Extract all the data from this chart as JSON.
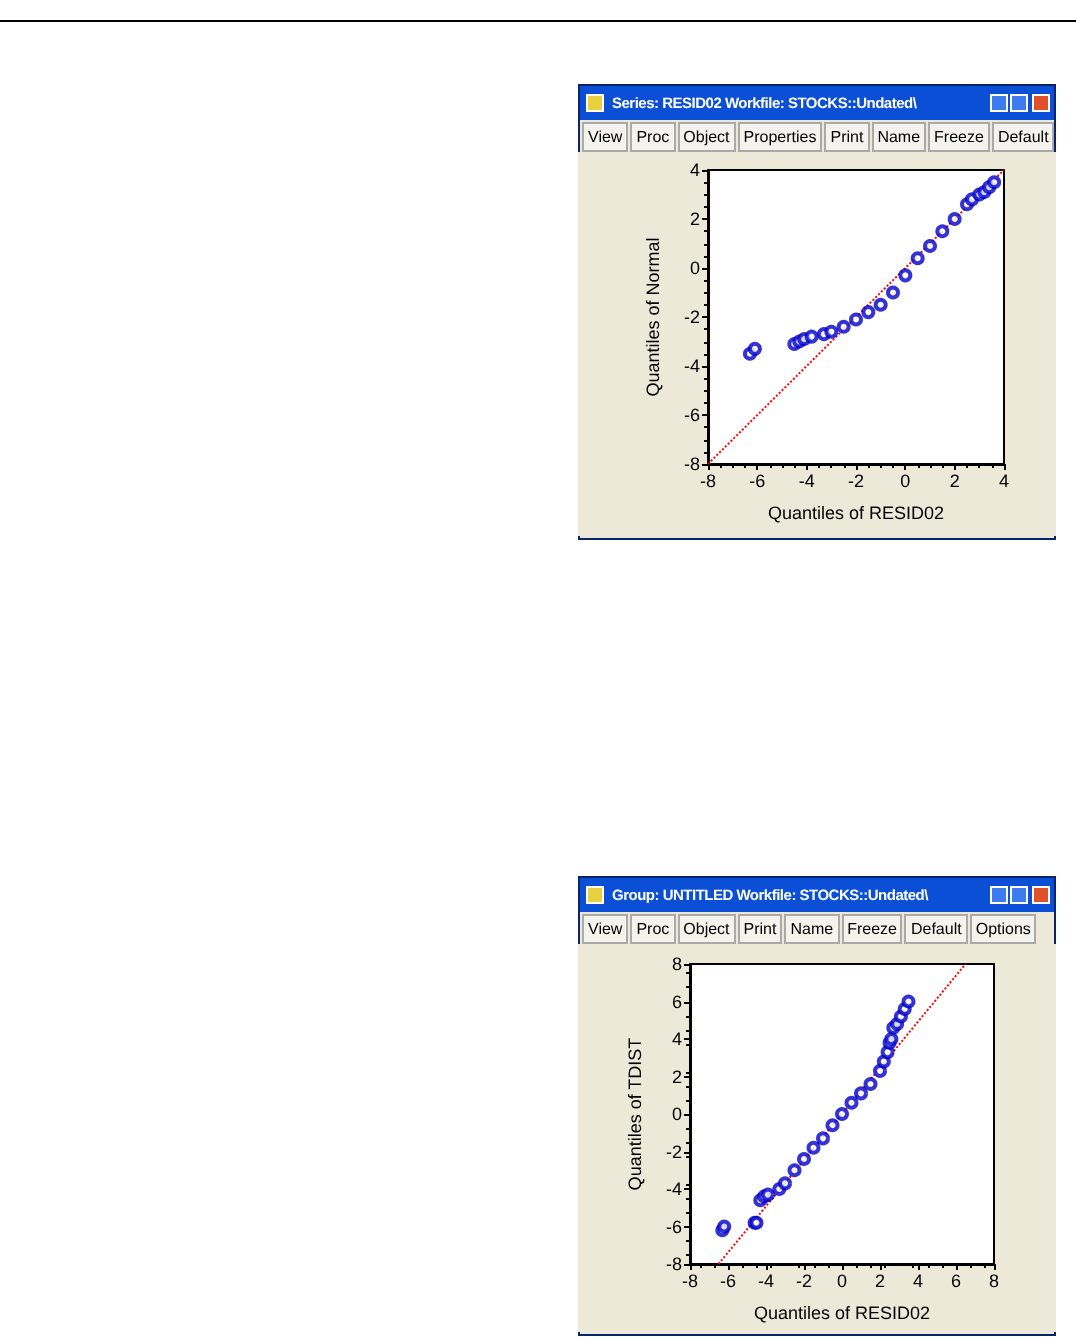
{
  "chart_data": [
    {
      "type": "scatter",
      "title": "Series: RESID02   Workfile: STOCKS::Undated\\",
      "annotations": [
        "View",
        "Proc",
        "Object",
        "Properties",
        "Print",
        "Name",
        "Freeze",
        "Default"
      ],
      "xlabel": "Quantiles of RESID02",
      "ylabel": "Quantiles of Normal",
      "xlim": [
        -8,
        4
      ],
      "ylim": [
        -8,
        4
      ],
      "xticks": [
        -8,
        -6,
        -4,
        -2,
        0,
        2,
        4
      ],
      "yticks": [
        -8,
        -6,
        -4,
        -2,
        0,
        2,
        4
      ],
      "marker": "circle",
      "series": [
        {
          "color": "#0000cc",
          "x": [
            -6.3,
            -6.1,
            -4.5,
            -4.3,
            -4.1,
            -3.8,
            -3.3,
            -3.0,
            -2.5,
            -2.0,
            -1.5,
            -1.0,
            -0.5,
            0.0,
            0.5,
            1.0,
            1.5,
            2.0,
            2.5,
            2.7,
            3.0,
            3.2,
            3.4,
            3.6
          ],
          "values": [
            -3.5,
            -3.3,
            -3.1,
            -3.0,
            -2.9,
            -2.8,
            -2.7,
            -2.6,
            -2.4,
            -2.1,
            -1.8,
            -1.5,
            -1.0,
            -0.3,
            0.4,
            0.9,
            1.5,
            2.0,
            2.6,
            2.8,
            3.0,
            3.1,
            3.3,
            3.5
          ]
        },
        {
          "type": "line",
          "color": "#ff0000",
          "line_style": "dotted",
          "marker": "none",
          "x": [
            -8,
            4
          ],
          "values": [
            -8,
            4
          ]
        }
      ]
    },
    {
      "type": "scatter",
      "title": "Group: UNTITLED   Workfile: STOCKS::Undated\\",
      "annotations": [
        "View",
        "Proc",
        "Object",
        "Print",
        "Name",
        "Freeze",
        "Default",
        "Options"
      ],
      "xlabel": "Quantiles of RESID02",
      "ylabel": "Quantiles of TDIST",
      "xlim": [
        -8,
        8
      ],
      "ylim": [
        -8,
        8
      ],
      "xticks": [
        -8,
        -6,
        -4,
        -2,
        0,
        2,
        4,
        6,
        8
      ],
      "yticks": [
        -8,
        -6,
        -4,
        -2,
        0,
        2,
        4,
        6,
        8
      ],
      "marker": "circle",
      "series": [
        {
          "color": "#0000cc",
          "x": [
            -6.3,
            -6.2,
            -4.6,
            -4.5,
            -4.3,
            -4.1,
            -3.9,
            -3.3,
            -3.0,
            -2.5,
            -2.0,
            -1.5,
            -1.0,
            -0.5,
            0.0,
            0.5,
            1.0,
            1.5,
            2.0,
            2.2,
            2.4,
            2.5,
            2.6,
            2.7,
            2.9,
            3.1,
            3.3,
            3.5
          ],
          "values": [
            -6.2,
            -6.0,
            -5.8,
            -5.8,
            -4.6,
            -4.4,
            -4.3,
            -4.0,
            -3.7,
            -3.0,
            -2.4,
            -1.8,
            -1.3,
            -0.6,
            0.0,
            0.6,
            1.1,
            1.6,
            2.3,
            2.8,
            3.3,
            3.8,
            4.0,
            4.6,
            4.8,
            5.2,
            5.6,
            6.0
          ]
        },
        {
          "type": "line",
          "color": "#ff0000",
          "line_style": "dotted",
          "marker": "none",
          "x": [
            -6.5,
            6.5
          ],
          "values": [
            -8,
            8
          ]
        }
      ]
    }
  ]
}
